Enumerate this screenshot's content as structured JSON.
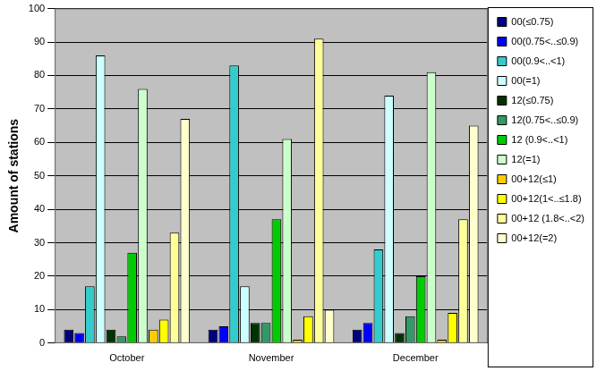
{
  "chart_data": {
    "type": "bar",
    "y_label": "Amount of stations",
    "categories": [
      "October",
      "November",
      "December"
    ],
    "series": [
      {
        "name": "00(≤0.75)",
        "color": "#000080",
        "values": [
          4,
          4,
          4
        ]
      },
      {
        "name": "00(0.75<..≤0.9)",
        "color": "#0000ff",
        "values": [
          3,
          5,
          6
        ]
      },
      {
        "name": "00(0.9<..<1)",
        "color": "#33cccc",
        "values": [
          17,
          83,
          28
        ]
      },
      {
        "name": "00(=1)",
        "color": "#ccffff",
        "values": [
          86,
          17,
          74
        ]
      },
      {
        "name": "12(≤0.75)",
        "color": "#003300",
        "values": [
          4,
          6,
          3
        ]
      },
      {
        "name": "12(0.75<..≤0.9)",
        "color": "#339966",
        "values": [
          2,
          6,
          8
        ]
      },
      {
        "name": "12 (0.9<..<1)",
        "color": "#00cc00",
        "values": [
          27,
          37,
          20
        ]
      },
      {
        "name": "12(=1)",
        "color": "#ccffcc",
        "values": [
          76,
          61,
          81
        ]
      },
      {
        "name": "00+12(≤1)",
        "color": "#ffcc00",
        "values": [
          4,
          1,
          1
        ]
      },
      {
        "name": "00+12(1<..≤1.8)",
        "color": "#ffff00",
        "values": [
          7,
          8,
          9
        ]
      },
      {
        "name": "00+12 (1.8<..<2)",
        "color": "#ffff99",
        "values": [
          33,
          91,
          37
        ]
      },
      {
        "name": "00+12(=2)",
        "color": "#ffffcc",
        "values": [
          67,
          10,
          65
        ]
      }
    ],
    "ylim": [
      0,
      100
    ],
    "yticks": [
      0,
      10,
      20,
      30,
      40,
      50,
      60,
      70,
      80,
      90,
      100
    ],
    "grid": true,
    "legend": "upper right",
    "data_labels": false
  }
}
